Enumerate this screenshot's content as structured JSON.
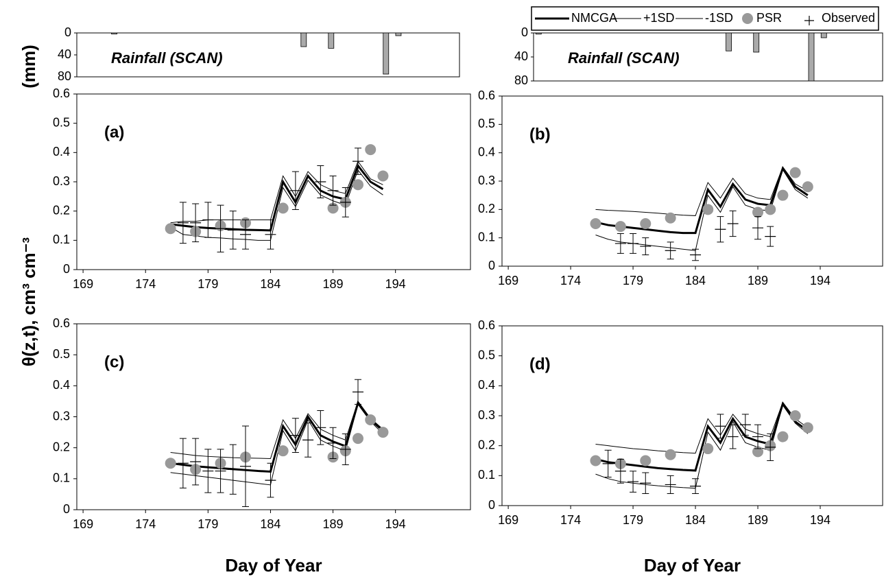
{
  "chart_data": [
    {
      "type": "bar",
      "title": "Rainfall (SCAN)",
      "ylabel": "(mm)",
      "inverted": true,
      "ylim": [
        0,
        80
      ],
      "yticks": [
        0,
        40,
        80
      ],
      "xlim": [
        168.4,
        199.1
      ],
      "color": "#aaaaaa",
      "x": [
        171.4,
        186.6,
        188.8,
        193.2,
        194.2
      ],
      "values": [
        2,
        25,
        28,
        75,
        5
      ]
    },
    {
      "type": "bar",
      "title": "Rainfall (SCAN)",
      "inverted": true,
      "ylim": [
        0,
        80
      ],
      "yticks": [
        0,
        40,
        80
      ],
      "xlim": [
        171,
        198.9
      ],
      "color": "#aaaaaa",
      "x": [
        171.4,
        186.6,
        188.8,
        193.2,
        194.2
      ],
      "values": [
        2,
        30,
        32,
        80,
        8
      ]
    },
    {
      "type": "line",
      "label": "(a)",
      "ylabel": "θ(z,t), cm³ cm⁻³",
      "xlim": [
        168.5,
        200
      ],
      "ylim": [
        0,
        0.6
      ],
      "xticks": [
        169,
        174,
        179,
        184,
        189,
        194
      ],
      "yticks": [
        0,
        0.1,
        0.2,
        0.3,
        0.4,
        0.5,
        0.6
      ],
      "series": [
        {
          "name": "NMCGA",
          "color": "#000000",
          "width": 3,
          "x": [
            176,
            177,
            178,
            179,
            180,
            181,
            182,
            183,
            184,
            185,
            186,
            187,
            188,
            189,
            190,
            191,
            192,
            193
          ],
          "values": [
            0.155,
            0.15,
            0.145,
            0.142,
            0.14,
            0.138,
            0.136,
            0.135,
            0.134,
            0.3,
            0.23,
            0.32,
            0.27,
            0.25,
            0.24,
            0.355,
            0.3,
            0.275
          ]
        },
        {
          "name": "+1SD",
          "color": "#000000",
          "width": 1,
          "x": [
            176,
            177,
            178,
            179,
            180,
            181,
            182,
            183,
            184,
            185,
            186,
            187,
            188,
            189,
            190,
            191,
            192,
            193
          ],
          "values": [
            0.16,
            0.165,
            0.165,
            0.17,
            0.17,
            0.17,
            0.17,
            0.17,
            0.17,
            0.32,
            0.25,
            0.335,
            0.29,
            0.27,
            0.26,
            0.37,
            0.31,
            0.29
          ]
        },
        {
          "name": "-1SD",
          "color": "#000000",
          "width": 1,
          "x": [
            176,
            177,
            178,
            179,
            180,
            181,
            182,
            183,
            184,
            185,
            186,
            187,
            188,
            189,
            190,
            191,
            192,
            193
          ],
          "values": [
            0.145,
            0.12,
            0.115,
            0.11,
            0.108,
            0.105,
            0.103,
            0.1,
            0.1,
            0.28,
            0.215,
            0.305,
            0.255,
            0.235,
            0.22,
            0.34,
            0.285,
            0.255
          ]
        },
        {
          "name": "PSR",
          "color": "#999999",
          "marker": "circle",
          "x": [
            176,
            178,
            180,
            182,
            185,
            189,
            190,
            191,
            192,
            193
          ],
          "values": [
            0.14,
            0.13,
            0.15,
            0.16,
            0.21,
            0.21,
            0.23,
            0.29,
            0.41,
            0.32
          ]
        },
        {
          "name": "Observed",
          "color": "#000000",
          "marker": "plus",
          "x": [
            177,
            178,
            179,
            180,
            181,
            182,
            184,
            186,
            188,
            189,
            190,
            191
          ],
          "values": [
            0.16,
            0.16,
            0.17,
            0.14,
            0.135,
            0.12,
            0.12,
            0.27,
            0.3,
            0.27,
            0.23,
            0.37
          ],
          "errors": [
            0.07,
            0.065,
            0.06,
            0.08,
            0.065,
            0.05,
            0.05,
            0.065,
            0.055,
            0.05,
            0.05,
            0.045
          ]
        }
      ]
    },
    {
      "type": "line",
      "label": "(b)",
      "xlim": [
        168.5,
        199
      ],
      "ylim": [
        0,
        0.6
      ],
      "xticks": [
        169,
        174,
        179,
        184,
        189,
        194
      ],
      "yticks": [
        0,
        0.1,
        0.2,
        0.3,
        0.4,
        0.5,
        0.6
      ],
      "series": [
        {
          "name": "NMCGA",
          "color": "#000000",
          "width": 3,
          "x": [
            176,
            177,
            178,
            179,
            180,
            181,
            182,
            183,
            184,
            185,
            186,
            187,
            188,
            189,
            190,
            191,
            192,
            193
          ],
          "values": [
            0.155,
            0.145,
            0.14,
            0.135,
            0.13,
            0.125,
            0.12,
            0.117,
            0.117,
            0.27,
            0.21,
            0.29,
            0.235,
            0.22,
            0.215,
            0.345,
            0.28,
            0.25
          ]
        },
        {
          "name": "+1SD",
          "color": "#000000",
          "width": 1,
          "x": [
            176,
            177,
            178,
            179,
            180,
            181,
            182,
            183,
            184,
            185,
            186,
            187,
            188,
            189,
            190,
            191,
            192,
            193
          ],
          "values": [
            0.2,
            0.197,
            0.195,
            0.193,
            0.19,
            0.187,
            0.183,
            0.18,
            0.178,
            0.295,
            0.24,
            0.31,
            0.255,
            0.24,
            0.235,
            0.35,
            0.29,
            0.265
          ]
        },
        {
          "name": "-1SD",
          "color": "#000000",
          "width": 1,
          "x": [
            176,
            177,
            178,
            179,
            180,
            181,
            182,
            183,
            184,
            185,
            186,
            187,
            188,
            189,
            190,
            191,
            192,
            193
          ],
          "values": [
            0.11,
            0.095,
            0.085,
            0.08,
            0.075,
            0.07,
            0.065,
            0.06,
            0.055,
            0.25,
            0.19,
            0.28,
            0.215,
            0.2,
            0.195,
            0.34,
            0.27,
            0.24
          ]
        },
        {
          "name": "PSR",
          "color": "#999999",
          "marker": "circle",
          "x": [
            176,
            178,
            180,
            182,
            185,
            189,
            190,
            191,
            192,
            193
          ],
          "values": [
            0.15,
            0.14,
            0.15,
            0.17,
            0.2,
            0.19,
            0.2,
            0.25,
            0.33,
            0.28
          ]
        },
        {
          "name": "Observed",
          "color": "#000000",
          "marker": "plus",
          "x": [
            178,
            179,
            180,
            182,
            184,
            186,
            187,
            189,
            190
          ],
          "values": [
            0.08,
            0.08,
            0.07,
            0.055,
            0.04,
            0.13,
            0.15,
            0.135,
            0.105
          ],
          "errors": [
            0.035,
            0.035,
            0.03,
            0.03,
            0.02,
            0.045,
            0.045,
            0.04,
            0.035
          ]
        }
      ]
    },
    {
      "type": "line",
      "label": "(c)",
      "xlabel": "Day of Year",
      "xlim": [
        168.5,
        200
      ],
      "ylim": [
        0,
        0.6
      ],
      "xticks": [
        169,
        174,
        179,
        184,
        189,
        194
      ],
      "yticks": [
        0,
        0.1,
        0.2,
        0.3,
        0.4,
        0.5,
        0.6
      ],
      "series": [
        {
          "name": "NMCGA",
          "color": "#000000",
          "width": 3,
          "x": [
            176,
            177,
            178,
            179,
            180,
            181,
            182,
            183,
            184,
            185,
            186,
            187,
            188,
            189,
            190,
            191,
            192,
            193
          ],
          "values": [
            0.15,
            0.145,
            0.14,
            0.137,
            0.134,
            0.131,
            0.128,
            0.125,
            0.123,
            0.27,
            0.21,
            0.3,
            0.24,
            0.22,
            0.205,
            0.345,
            0.29,
            0.255
          ]
        },
        {
          "name": "+1SD",
          "color": "#000000",
          "width": 1,
          "x": [
            176,
            177,
            178,
            179,
            180,
            181,
            182,
            183,
            184,
            185,
            186,
            187,
            188,
            189,
            190,
            191,
            192,
            193
          ],
          "values": [
            0.185,
            0.18,
            0.175,
            0.172,
            0.17,
            0.168,
            0.167,
            0.166,
            0.165,
            0.29,
            0.23,
            0.31,
            0.26,
            0.24,
            0.225,
            0.35,
            0.295,
            0.26
          ]
        },
        {
          "name": "-1SD",
          "color": "#000000",
          "width": 1,
          "x": [
            176,
            177,
            178,
            179,
            180,
            181,
            182,
            183,
            184,
            185,
            186,
            187,
            188,
            189,
            190,
            191,
            192,
            193
          ],
          "values": [
            0.12,
            0.115,
            0.11,
            0.105,
            0.1,
            0.095,
            0.09,
            0.085,
            0.08,
            0.255,
            0.19,
            0.29,
            0.225,
            0.205,
            0.19,
            0.34,
            0.285,
            0.245
          ]
        },
        {
          "name": "PSR",
          "color": "#999999",
          "marker": "circle",
          "x": [
            176,
            178,
            180,
            182,
            185,
            189,
            190,
            191,
            192,
            193
          ],
          "values": [
            0.15,
            0.13,
            0.15,
            0.17,
            0.19,
            0.17,
            0.19,
            0.23,
            0.29,
            0.25
          ]
        },
        {
          "name": "Observed",
          "color": "#000000",
          "marker": "plus",
          "x": [
            177,
            178,
            179,
            180,
            181,
            182,
            184,
            186,
            187,
            188,
            189,
            190,
            191
          ],
          "values": [
            0.15,
            0.155,
            0.125,
            0.125,
            0.13,
            0.14,
            0.095,
            0.24,
            0.225,
            0.265,
            0.215,
            0.195,
            0.38
          ],
          "errors": [
            0.08,
            0.075,
            0.07,
            0.07,
            0.08,
            0.13,
            0.055,
            0.055,
            0.055,
            0.055,
            0.05,
            0.05,
            0.04
          ]
        }
      ]
    },
    {
      "type": "line",
      "label": "(d)",
      "xlabel": "Day of Year",
      "xlim": [
        168.5,
        199
      ],
      "ylim": [
        0,
        0.6
      ],
      "xticks": [
        169,
        174,
        179,
        184,
        189,
        194
      ],
      "yticks": [
        0,
        0.1,
        0.2,
        0.3,
        0.4,
        0.5,
        0.6
      ],
      "series": [
        {
          "name": "NMCGA",
          "color": "#000000",
          "width": 3,
          "x": [
            176,
            177,
            178,
            179,
            180,
            181,
            182,
            183,
            184,
            185,
            186,
            187,
            188,
            189,
            190,
            191,
            192,
            193
          ],
          "values": [
            0.155,
            0.145,
            0.14,
            0.135,
            0.13,
            0.125,
            0.122,
            0.119,
            0.117,
            0.265,
            0.21,
            0.29,
            0.23,
            0.215,
            0.205,
            0.34,
            0.28,
            0.25
          ]
        },
        {
          "name": "+1SD",
          "color": "#000000",
          "width": 1,
          "x": [
            176,
            177,
            178,
            179,
            180,
            181,
            182,
            183,
            184,
            185,
            186,
            187,
            188,
            189,
            190,
            191,
            192,
            193
          ],
          "values": [
            0.205,
            0.2,
            0.195,
            0.19,
            0.187,
            0.183,
            0.18,
            0.177,
            0.175,
            0.29,
            0.235,
            0.305,
            0.255,
            0.24,
            0.23,
            0.345,
            0.29,
            0.26
          ]
        },
        {
          "name": "-1SD",
          "color": "#000000",
          "width": 1,
          "x": [
            176,
            177,
            178,
            179,
            180,
            181,
            182,
            183,
            184,
            185,
            186,
            187,
            188,
            189,
            190,
            191,
            192,
            193
          ],
          "values": [
            0.105,
            0.09,
            0.08,
            0.075,
            0.07,
            0.066,
            0.063,
            0.06,
            0.058,
            0.245,
            0.185,
            0.28,
            0.21,
            0.195,
            0.185,
            0.335,
            0.275,
            0.24
          ]
        },
        {
          "name": "PSR",
          "color": "#999999",
          "marker": "circle",
          "x": [
            176,
            178,
            180,
            182,
            185,
            189,
            190,
            191,
            192,
            193
          ],
          "values": [
            0.15,
            0.14,
            0.15,
            0.17,
            0.19,
            0.18,
            0.2,
            0.23,
            0.3,
            0.26
          ]
        },
        {
          "name": "Observed",
          "color": "#000000",
          "marker": "plus",
          "x": [
            177,
            178,
            179,
            180,
            182,
            184,
            186,
            187,
            188,
            189,
            190
          ],
          "values": [
            0.14,
            0.115,
            0.08,
            0.075,
            0.07,
            0.065,
            0.265,
            0.23,
            0.27,
            0.23,
            0.195
          ],
          "errors": [
            0.045,
            0.04,
            0.035,
            0.035,
            0.03,
            0.025,
            0.04,
            0.04,
            0.035,
            0.04,
            0.045
          ]
        }
      ]
    }
  ]
}
